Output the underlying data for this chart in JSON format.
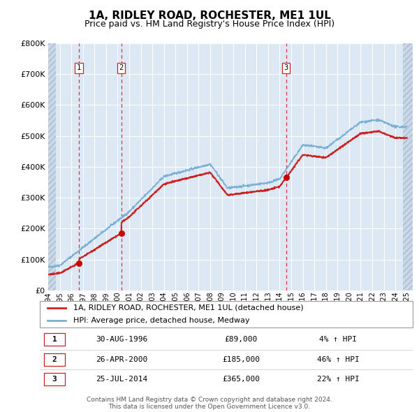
{
  "title": "1A, RIDLEY ROAD, ROCHESTER, ME1 1UL",
  "subtitle": "Price paid vs. HM Land Registry's House Price Index (HPI)",
  "ylim": [
    0,
    800000
  ],
  "yticks": [
    0,
    100000,
    200000,
    300000,
    400000,
    500000,
    600000,
    700000,
    800000
  ],
  "xlim_start": 1994.0,
  "xlim_end": 2025.5,
  "plot_bg_color": "#dce9f5",
  "fig_bg_color": "#ffffff",
  "grid_color": "#ffffff",
  "hatch_color": "#c8d8e8",
  "hpi_line_color": "#7bafd4",
  "price_line_color": "#cc2222",
  "sale_marker_color": "#cc0000",
  "dashed_line_color": "#dd3333",
  "title_fontsize": 11,
  "subtitle_fontsize": 9,
  "tick_fontsize": 7,
  "ytick_fontsize": 8,
  "legend_fontsize": 8,
  "table_fontsize": 8,
  "footer_fontsize": 6.5,
  "sale_points": [
    {
      "year": 1996.664,
      "price": 89000,
      "label": "1"
    },
    {
      "year": 2000.317,
      "price": 185000,
      "label": "2"
    },
    {
      "year": 2014.558,
      "price": 365000,
      "label": "3"
    }
  ],
  "table_rows": [
    {
      "num": "1",
      "date": "30-AUG-1996",
      "price": "£89,000",
      "change": "4% ↑ HPI"
    },
    {
      "num": "2",
      "date": "26-APR-2000",
      "price": "£185,000",
      "change": "46% ↑ HPI"
    },
    {
      "num": "3",
      "date": "25-JUL-2014",
      "price": "£365,000",
      "change": "22% ↑ HPI"
    }
  ],
  "footer_text": "Contains HM Land Registry data © Crown copyright and database right 2024.\nThis data is licensed under the Open Government Licence v3.0.",
  "legend_entries": [
    "1A, RIDLEY ROAD, ROCHESTER, ME1 1UL (detached house)",
    "HPI: Average price, detached house, Medway"
  ]
}
